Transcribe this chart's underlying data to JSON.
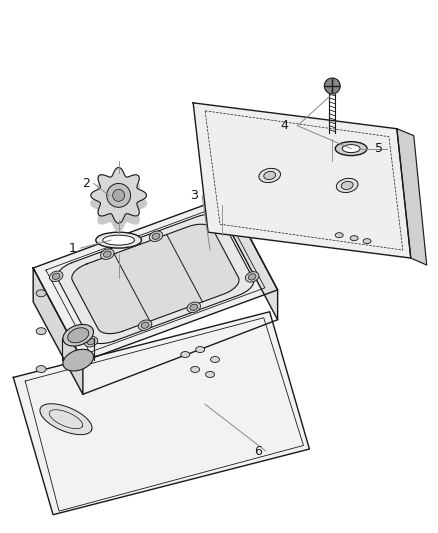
{
  "background_color": "#ffffff",
  "line_color": "#1a1a1a",
  "label_color": "#1a1a1a",
  "gray_fill": "#e8e8e8",
  "gray_mid": "#cccccc",
  "gray_dark": "#999999",
  "figsize": [
    4.38,
    5.33
  ],
  "dpi": 100,
  "label_fontsize": 9
}
